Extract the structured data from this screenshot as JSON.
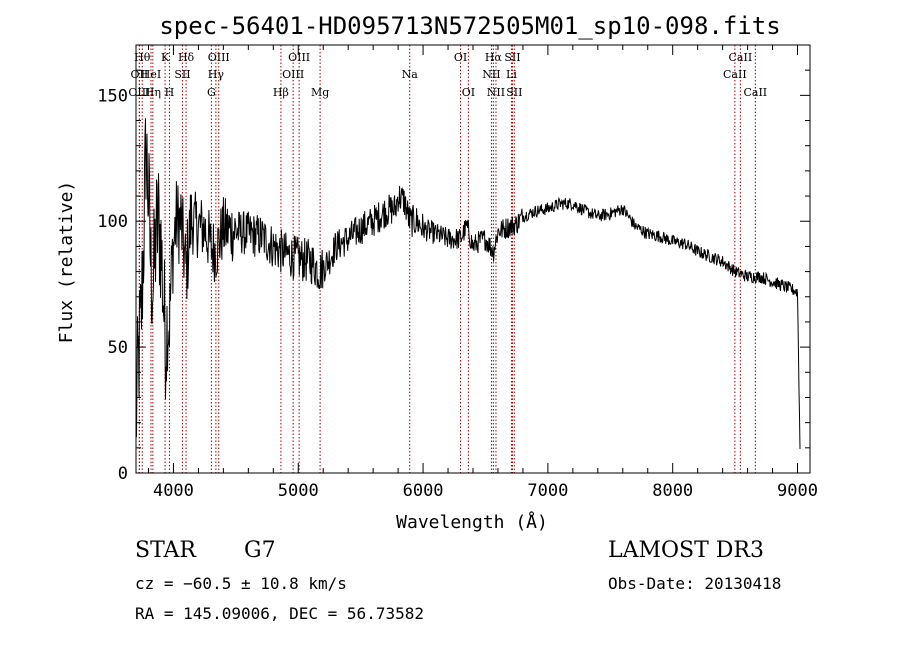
{
  "chart_data": {
    "type": "line",
    "title": "spec-56401-HD095713N572505M01_sp10-098.fits",
    "xlabel": "Wavelength (Å)",
    "ylabel": "Flux (relative)",
    "xlim": [
      3700,
      9100
    ],
    "ylim": [
      0,
      170
    ],
    "xticks": [
      4000,
      5000,
      6000,
      7000,
      8000,
      9000
    ],
    "yticks": [
      0,
      50,
      100,
      150
    ],
    "line_color": "#000000",
    "marker_color": "#aa0000",
    "anchors": [
      [
        3700,
        20
      ],
      [
        3720,
        45
      ],
      [
        3740,
        60
      ],
      [
        3760,
        90
      ],
      [
        3780,
        130
      ],
      [
        3800,
        110
      ],
      [
        3820,
        80
      ],
      [
        3840,
        75
      ],
      [
        3860,
        95
      ],
      [
        3880,
        100
      ],
      [
        3900,
        90
      ],
      [
        3933,
        55
      ],
      [
        3968,
        60
      ],
      [
        3990,
        85
      ],
      [
        4020,
        100
      ],
      [
        4060,
        100
      ],
      [
        4101,
        80
      ],
      [
        4140,
        100
      ],
      [
        4200,
        98
      ],
      [
        4250,
        97
      ],
      [
        4300,
        90
      ],
      [
        4340,
        88
      ],
      [
        4400,
        97
      ],
      [
        4500,
        96
      ],
      [
        4600,
        95
      ],
      [
        4700,
        94
      ],
      [
        4800,
        90
      ],
      [
        4861,
        88
      ],
      [
        4900,
        87
      ],
      [
        5000,
        85
      ],
      [
        5100,
        84
      ],
      [
        5175,
        80
      ],
      [
        5250,
        85
      ],
      [
        5300,
        90
      ],
      [
        5400,
        93
      ],
      [
        5500,
        97
      ],
      [
        5600,
        100
      ],
      [
        5700,
        104
      ],
      [
        5780,
        105
      ],
      [
        5800,
        110
      ],
      [
        5850,
        108
      ],
      [
        5893,
        100
      ],
      [
        5950,
        100
      ],
      [
        6000,
        97
      ],
      [
        6100,
        95
      ],
      [
        6200,
        93
      ],
      [
        6300,
        93
      ],
      [
        6350,
        98
      ],
      [
        6400,
        90
      ],
      [
        6450,
        92
      ],
      [
        6500,
        93
      ],
      [
        6563,
        88
      ],
      [
        6600,
        96
      ],
      [
        6650,
        97
      ],
      [
        6700,
        98
      ],
      [
        6750,
        99
      ],
      [
        6800,
        102
      ],
      [
        6900,
        104
      ],
      [
        7000,
        105
      ],
      [
        7100,
        107
      ],
      [
        7200,
        107
      ],
      [
        7300,
        104
      ],
      [
        7400,
        102
      ],
      [
        7500,
        103
      ],
      [
        7600,
        105
      ],
      [
        7700,
        98
      ],
      [
        7800,
        95
      ],
      [
        7900,
        94
      ],
      [
        8000,
        92
      ],
      [
        8100,
        91
      ],
      [
        8200,
        88
      ],
      [
        8300,
        86
      ],
      [
        8400,
        84
      ],
      [
        8500,
        80
      ],
      [
        8600,
        78
      ],
      [
        8700,
        78
      ],
      [
        8800,
        76
      ],
      [
        8900,
        74
      ],
      [
        9000,
        72
      ],
      [
        9020,
        10
      ]
    ],
    "lines": [
      {
        "name": "OII",
        "wl": 3727,
        "row": 1
      },
      {
        "name": "OIII",
        "wl": 3727,
        "row": 2
      },
      {
        "name": "Hθ",
        "wl": 3750,
        "row": 0
      },
      {
        "name": "Hη",
        "wl": 3835,
        "row": 2
      },
      {
        "name": "HeI",
        "wl": 3820,
        "row": 1
      },
      {
        "name": "K",
        "wl": 3933,
        "row": 0
      },
      {
        "name": "H",
        "wl": 3968,
        "row": 2
      },
      {
        "name": "SII",
        "wl": 4072,
        "row": 1
      },
      {
        "name": "Hδ",
        "wl": 4101,
        "row": 0
      },
      {
        "name": "OIII",
        "wl": 4363,
        "row": 0
      },
      {
        "name": "Hγ",
        "wl": 4340,
        "row": 1
      },
      {
        "name": "G",
        "wl": 4304,
        "row": 2
      },
      {
        "name": "Hβ",
        "wl": 4861,
        "row": 2
      },
      {
        "name": "OIII",
        "wl": 5007,
        "row": 0
      },
      {
        "name": "OIII",
        "wl": 4959,
        "row": 1
      },
      {
        "name": "Mg",
        "wl": 5175,
        "row": 2
      },
      {
        "name": "Na",
        "wl": 5893,
        "row": 1
      },
      {
        "name": "OI",
        "wl": 6300,
        "row": 0
      },
      {
        "name": "OI",
        "wl": 6363,
        "row": 2
      },
      {
        "name": "Hα",
        "wl": 6563,
        "row": 0
      },
      {
        "name": "NII",
        "wl": 6548,
        "row": 1
      },
      {
        "name": "NII",
        "wl": 6584,
        "row": 2
      },
      {
        "name": "SII",
        "wl": 6716,
        "row": 0
      },
      {
        "name": "Li",
        "wl": 6708,
        "row": 1
      },
      {
        "name": "SII",
        "wl": 6731,
        "row": 2
      },
      {
        "name": "CaII",
        "wl": 8542,
        "row": 0
      },
      {
        "name": "CaII",
        "wl": 8498,
        "row": 1
      },
      {
        "name": "CaII",
        "wl": 8662,
        "row": 2
      }
    ]
  },
  "info": {
    "object_class": "STAR",
    "subclass": "G7",
    "survey": "LAMOST DR3",
    "redshift": "cz = −60.5 ± 10.8 km/s",
    "obs_date": "Obs-Date: 20130418",
    "coords": "RA = 145.09006, DEC =  56.73582"
  }
}
